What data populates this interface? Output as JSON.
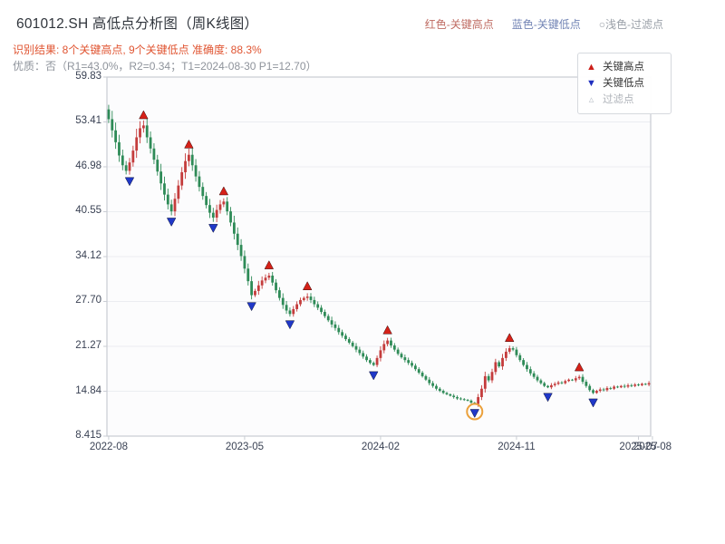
{
  "header": {
    "title": "601012.SH 高低点分析图（周K线图）",
    "legend_high": "红色-关键高点",
    "legend_low": "蓝色-关键低点",
    "legend_filter": "○浅色-过滤点",
    "result_line": "识别结果: 8个关键高点, 9个关键低点  准确度: 88.3%",
    "quality_line": "优质：否（R1=43.0%，R2=0.34；T1=2024-08-30 P1=12.70）"
  },
  "chart_legend": {
    "high_marker": "▲",
    "high_label": "关键高点",
    "low_marker": "▼",
    "low_label": "关键低点",
    "filter_marker": "▵",
    "filter_label": "过滤点"
  },
  "chart_data": {
    "type": "candlestick",
    "symbol": "601012.SH",
    "interval": "weekly",
    "ylim": [
      8.415,
      59.83
    ],
    "y_ticks": [
      {
        "value": 59.83,
        "label": "59.83"
      },
      {
        "value": 53.41,
        "label": "53.41"
      },
      {
        "value": 46.98,
        "label": "46.98"
      },
      {
        "value": 40.55,
        "label": "40.55"
      },
      {
        "value": 34.12,
        "label": "34.12"
      },
      {
        "value": 27.7,
        "label": "27.70"
      },
      {
        "value": 21.27,
        "label": "21.27"
      },
      {
        "value": 14.84,
        "label": "14.84"
      },
      {
        "value": 8.415,
        "label": "8.415"
      }
    ],
    "x_ticks": [
      {
        "week": 0,
        "label": "2022-08"
      },
      {
        "week": 39,
        "label": "2023-05"
      },
      {
        "week": 78,
        "label": "2024-02"
      },
      {
        "week": 117,
        "label": "2024-11"
      },
      {
        "week": 152,
        "label": "2025-07"
      },
      {
        "week": 156,
        "label": "2025-08"
      }
    ],
    "weeks_total": 156,
    "first_open": 55.2,
    "weekly_closes": [
      53.8,
      52.2,
      50.5,
      48.6,
      47.2,
      46.4,
      47.6,
      49.3,
      51.2,
      52.5,
      52.9,
      51.2,
      49.6,
      48.0,
      46.3,
      44.6,
      43.0,
      41.6,
      40.6,
      42.4,
      44.3,
      46.2,
      47.8,
      48.7,
      47.2,
      45.6,
      44.1,
      42.8,
      41.5,
      40.4,
      39.7,
      40.8,
      41.6,
      42.0,
      40.6,
      39.0,
      37.4,
      35.8,
      34.2,
      32.4,
      30.6,
      28.6,
      29.2,
      30.0,
      30.7,
      31.1,
      31.4,
      30.4,
      29.3,
      28.2,
      27.2,
      26.4,
      25.9,
      26.6,
      27.3,
      27.9,
      28.2,
      28.4,
      27.9,
      27.3,
      26.8,
      26.2,
      25.6,
      25.0,
      24.4,
      23.9,
      23.3,
      22.8,
      22.3,
      21.8,
      21.3,
      20.8,
      20.3,
      19.8,
      19.3,
      18.9,
      18.6,
      19.6,
      20.7,
      21.6,
      22.1,
      21.4,
      20.8,
      20.2,
      19.7,
      19.3,
      18.9,
      18.5,
      18.0,
      17.5,
      17.0,
      16.5,
      16.0,
      15.6,
      15.2,
      14.9,
      14.6,
      14.4,
      14.2,
      14.0,
      13.8,
      13.7,
      13.6,
      13.5,
      13.2,
      13.0,
      14.0,
      15.2,
      17.0,
      16.4,
      17.6,
      19.0,
      18.4,
      19.6,
      20.5,
      21.0,
      20.8,
      20.0,
      19.3,
      18.6,
      18.0,
      17.4,
      16.9,
      16.4,
      16.0,
      15.6,
      15.4,
      15.7,
      15.9,
      16.1,
      16.0,
      16.3,
      16.5,
      16.4,
      16.7,
      16.9,
      16.2,
      15.6,
      15.0,
      14.6,
      14.9,
      15.1,
      15.0,
      15.3,
      15.2,
      15.5,
      15.4,
      15.6,
      15.5,
      15.7,
      15.6,
      15.8,
      15.7,
      15.9,
      15.8,
      16.0
    ],
    "key_highs": [
      {
        "week": 10,
        "price": 53.4
      },
      {
        "week": 23,
        "price": 49.2
      },
      {
        "week": 33,
        "price": 42.5
      },
      {
        "week": 46,
        "price": 31.9
      },
      {
        "week": 57,
        "price": 28.9
      },
      {
        "week": 80,
        "price": 22.6
      },
      {
        "week": 115,
        "price": 21.5
      },
      {
        "week": 135,
        "price": 17.3
      }
    ],
    "key_lows": [
      {
        "week": 6,
        "price": 45.9
      },
      {
        "week": 18,
        "price": 40.1
      },
      {
        "week": 30,
        "price": 39.2
      },
      {
        "week": 41,
        "price": 28.0
      },
      {
        "week": 52,
        "price": 25.4
      },
      {
        "week": 76,
        "price": 18.1
      },
      {
        "week": 105,
        "price": 12.7
      },
      {
        "week": 126,
        "price": 15.0
      },
      {
        "week": 139,
        "price": 14.2
      }
    ],
    "highlight": {
      "week": 105,
      "price": 12.7,
      "date": "2024-08-30",
      "label": "T1"
    },
    "colors": {
      "up": "#c43c3c",
      "down": "#2e8b57",
      "key_high": "#d62118",
      "key_low": "#2038c8",
      "highlight_ring": "#eba13c",
      "grid": "#ebedf1",
      "spine": "#c9ccd3",
      "plot_bg": "#fcfcfd",
      "tick_text": "#3a4254"
    }
  }
}
